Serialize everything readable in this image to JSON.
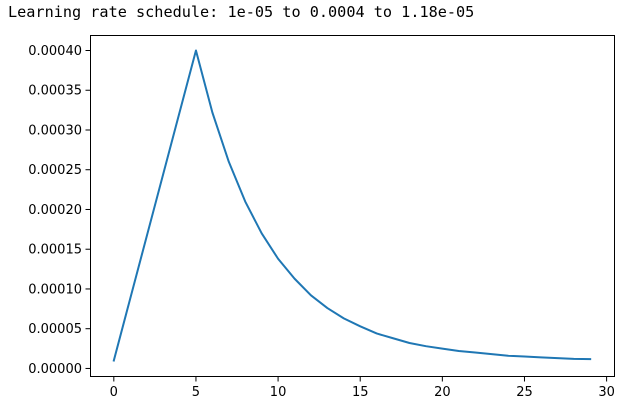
{
  "output_text": "Learning rate schedule: 1e-05 to 0.0004 to 1.18e-05",
  "chart_data": {
    "type": "line",
    "title": "",
    "xlabel": "",
    "ylabel": "",
    "xlim": [
      -1.45,
      30.45
    ],
    "ylim": [
      -9.5e-06,
      0.0004195
    ],
    "xticks": [
      0,
      5,
      10,
      15,
      20,
      25,
      30
    ],
    "xtick_labels": [
      "0",
      "5",
      "10",
      "15",
      "20",
      "25",
      "30"
    ],
    "yticks": [
      0.0,
      5e-05,
      0.0001,
      0.00015,
      0.0002,
      0.00025,
      0.0003,
      0.00035,
      0.0004
    ],
    "ytick_labels": [
      "0.00000",
      "0.00005",
      "0.00010",
      "0.00015",
      "0.00020",
      "0.00025",
      "0.00030",
      "0.00035",
      "0.00040"
    ],
    "grid": false,
    "series": [
      {
        "color": "#1f77b4",
        "x": [
          0,
          1,
          2,
          3,
          4,
          5,
          6,
          7,
          8,
          9,
          10,
          11,
          12,
          13,
          14,
          15,
          16,
          17,
          18,
          19,
          20,
          21,
          22,
          23,
          24,
          25,
          26,
          27,
          28,
          29
        ],
        "y": [
          1e-05,
          8.8e-05,
          0.000166,
          0.000244,
          0.000322,
          0.0004,
          0.000322,
          0.00026,
          0.00021,
          0.00017,
          0.000138,
          0.000113,
          9.2e-05,
          7.6e-05,
          6.3e-05,
          5.3e-05,
          4.4e-05,
          3.8e-05,
          3.2e-05,
          2.8e-05,
          2.5e-05,
          2.2e-05,
          2e-05,
          1.8e-05,
          1.6e-05,
          1.5e-05,
          1.4e-05,
          1.3e-05,
          1.2e-05,
          1.18e-05
        ]
      }
    ]
  }
}
